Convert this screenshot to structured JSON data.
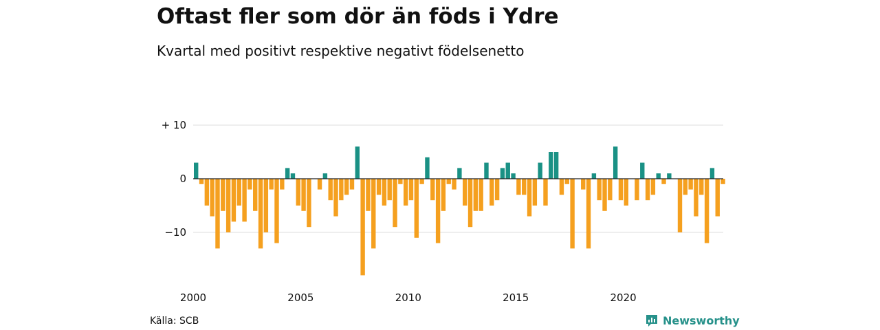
{
  "title": "Oftast fler som dör än föds i Ydre",
  "subtitle": "Kvartal med positivt respektive negativt födelsenetto",
  "source": "Källa: SCB",
  "brand": {
    "name": "Newsworthy",
    "icon": "chart-bars-icon",
    "color": "#26918a"
  },
  "colors": {
    "positive": "#1a9185",
    "negative": "#f5a01f",
    "grid": "#dcdcdc",
    "zero": "#222222"
  },
  "chart_data": {
    "type": "bar",
    "start_year": 2000,
    "periods_per_year": 4,
    "values": [
      3,
      -1,
      -5,
      -7,
      -13,
      -6,
      -10,
      -8,
      -5,
      -8,
      -2,
      -6,
      -13,
      -10,
      -2,
      -12,
      -2,
      2,
      1,
      -5,
      -6,
      -9,
      0,
      -2,
      1,
      -4,
      -7,
      -4,
      -3,
      -2,
      6,
      -18,
      -6,
      -13,
      -3,
      -5,
      -4,
      -9,
      -1,
      -5,
      -4,
      -11,
      -1,
      4,
      -4,
      -12,
      -6,
      -1,
      -2,
      2,
      -5,
      -9,
      -6,
      -6,
      3,
      -5,
      -4,
      2,
      3,
      1,
      -3,
      -3,
      -7,
      -5,
      3,
      -5,
      5,
      5,
      -3,
      -1,
      -13,
      0,
      -2,
      -13,
      1,
      -4,
      -6,
      -4,
      6,
      -4,
      -5,
      0,
      -4,
      3,
      -4,
      -3,
      1,
      -1,
      1,
      0,
      -10,
      -3,
      -2,
      -7,
      -3,
      -12,
      2,
      -7,
      -1
    ],
    "xticks": [
      {
        "value": 2000,
        "label": "2000"
      },
      {
        "value": 2005,
        "label": "2005"
      },
      {
        "value": 2010,
        "label": "2010"
      },
      {
        "value": 2015,
        "label": "2015"
      },
      {
        "value": 2020,
        "label": "2020"
      }
    ],
    "yticks": [
      {
        "value": 10,
        "label": "+ 10"
      },
      {
        "value": 0,
        "label": "0"
      },
      {
        "value": -10,
        "label": "−10"
      }
    ],
    "ylim": [
      -18,
      10
    ],
    "grid": true,
    "legend": "none"
  }
}
